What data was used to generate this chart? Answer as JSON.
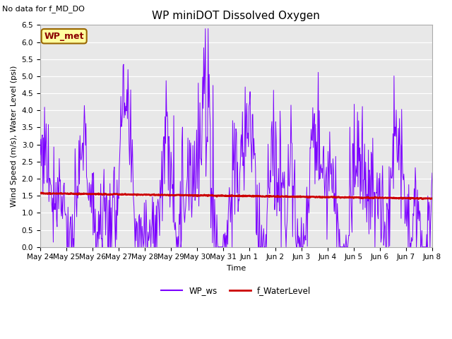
{
  "title": "WP miniDOT Dissolved Oxygen",
  "no_data_label": "No data for f_MD_DO",
  "ylabel": "Wind Speed (m/s), Water Level (psi)",
  "xlabel": "Time",
  "ylim": [
    0.0,
    6.5
  ],
  "yticks": [
    0.0,
    0.5,
    1.0,
    1.5,
    2.0,
    2.5,
    3.0,
    3.5,
    4.0,
    4.5,
    5.0,
    5.5,
    6.0,
    6.5
  ],
  "xtick_labels": [
    "May 24",
    "May 25",
    "May 26",
    "May 27",
    "May 28",
    "May 29",
    "May 30",
    "May 31",
    "Jun 1",
    "Jun 2",
    "Jun 3",
    "Jun 4",
    "Jun 5",
    "Jun 6",
    "Jun 7",
    "Jun 8"
  ],
  "wp_ws_color": "#7B00FF",
  "f_wl_color": "#CC0000",
  "legend_box_label": "WP_met",
  "legend_box_facecolor": "#FFFFA0",
  "legend_box_edgecolor": "#996600",
  "legend_box_text_color": "#8B0000",
  "legend_ws_label": "WP_ws",
  "legend_wl_label": "f_WaterLevel",
  "bg_color": "#E8E8E8",
  "title_fontsize": 11,
  "axis_label_fontsize": 8,
  "tick_fontsize": 7.5,
  "nodata_fontsize": 8
}
